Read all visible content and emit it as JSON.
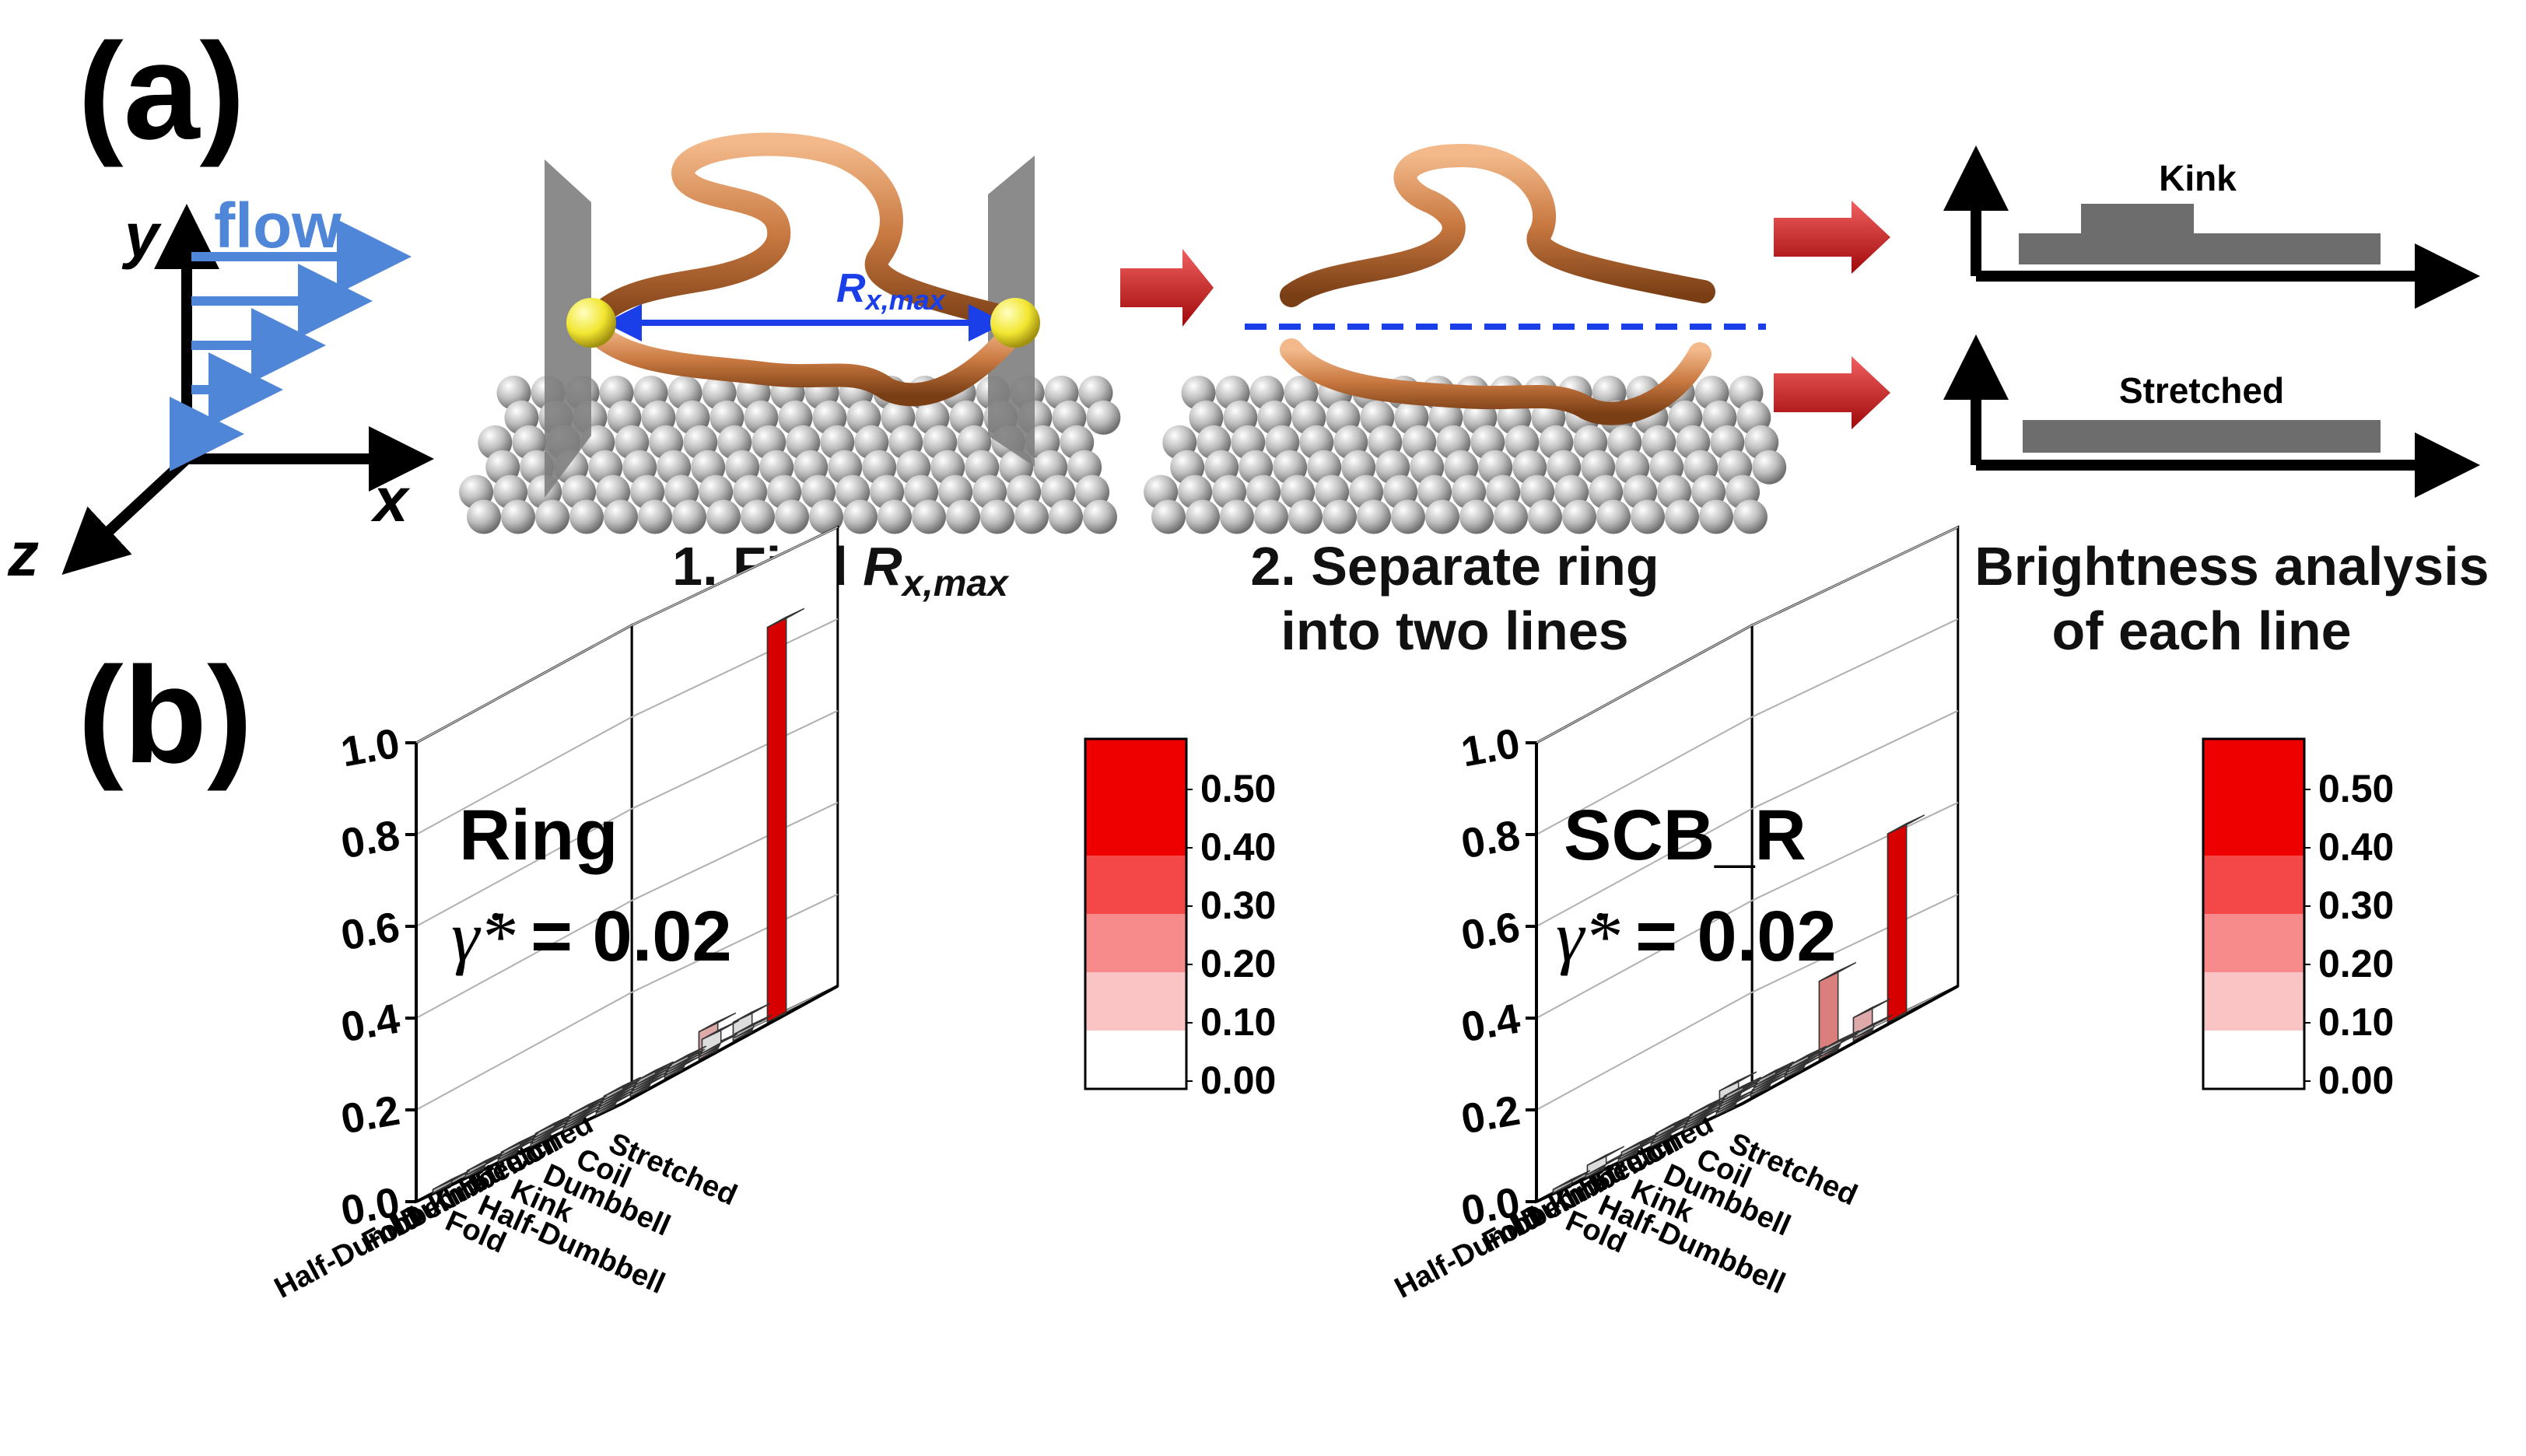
{
  "panel_a": {
    "label": "(a)",
    "axes": {
      "y": "y",
      "x": "x",
      "z": "z",
      "flow": "flow"
    },
    "rx_label": {
      "main": "R",
      "sub": "x,max"
    },
    "step1": {
      "text": "1. Find ",
      "r": "R",
      "sub": "x,max"
    },
    "step2": {
      "line1": "2. Separate ring",
      "line2": "into two lines"
    },
    "step3": {
      "line1": "3. Brightness analysis",
      "line2": "of each line"
    },
    "profile_top": "Kink",
    "profile_bottom": "Stretched",
    "colors": {
      "flow": "#4f86d8",
      "arrow": "#cc1010",
      "tube": "#c87840",
      "endpoint": "#f2e630",
      "dashed": "#1a3ee8",
      "profile": "#6d6d6d"
    }
  },
  "panel_b": {
    "label": "(b)",
    "colors": {
      "bar_high": "#ee0000",
      "bar_mid": "#f28c8c",
      "bar_low": "#f6bcbc",
      "bar_zero": "#c8c8c8"
    },
    "chart_data": [
      {
        "type": "bar3d",
        "title": "Ring",
        "rate_symbol": "γ̇*",
        "rate_value": "= 0.02",
        "categories": [
          "Fold",
          "Half-Dumbbell",
          "Kink",
          "Dumbbell",
          "Coil",
          "Stretched"
        ],
        "z_ticks": [
          "0.0",
          "0.2",
          "0.4",
          "0.6",
          "0.8",
          "1.0"
        ],
        "zlim": [
          0,
          1
        ],
        "note": "rows: left-axis category; columns: right-axis category",
        "values": [
          [
            0.0,
            0.0,
            0.0,
            0.0,
            0.0,
            0.0
          ],
          [
            0.0,
            0.0,
            0.0,
            0.0,
            0.0,
            0.0
          ],
          [
            0.0,
            0.0,
            0.0,
            0.0,
            0.0,
            0.0
          ],
          [
            0.0,
            0.0,
            0.0,
            0.0,
            0.0,
            0.06
          ],
          [
            0.0,
            0.0,
            0.0,
            0.0,
            0.0,
            0.04
          ],
          [
            0.0,
            0.0,
            0.0,
            0.03,
            0.0,
            0.86
          ]
        ],
        "colorbar": {
          "ticks": [
            "0.50",
            "0.40",
            "0.30",
            "0.20",
            "0.10",
            "0.00"
          ]
        }
      },
      {
        "type": "bar3d",
        "title": "SCB_R",
        "rate_symbol": "γ̇*",
        "rate_value": "= 0.02",
        "categories": [
          "Fold",
          "Half-Dumbbell",
          "Kink",
          "Dumbbell",
          "Coil",
          "Stretched"
        ],
        "z_ticks": [
          "0.0",
          "0.2",
          "0.4",
          "0.6",
          "0.8",
          "1.0"
        ],
        "zlim": [
          0,
          1
        ],
        "note": "rows: left-axis category; columns: right-axis category",
        "values": [
          [
            0.0,
            0.0,
            0.0,
            0.0,
            0.0,
            0.0
          ],
          [
            0.02,
            0.0,
            0.0,
            0.0,
            0.0,
            0.0
          ],
          [
            0.0,
            0.0,
            0.0,
            0.04,
            0.0,
            0.0
          ],
          [
            0.0,
            0.0,
            0.0,
            0.0,
            0.0,
            0.17
          ],
          [
            0.0,
            0.0,
            0.0,
            0.0,
            0.0,
            0.05
          ],
          [
            0.0,
            0.0,
            0.0,
            0.0,
            0.0,
            0.41
          ]
        ],
        "colorbar": {
          "ticks": [
            "0.50",
            "0.40",
            "0.30",
            "0.20",
            "0.10",
            "0.00"
          ]
        }
      }
    ]
  }
}
